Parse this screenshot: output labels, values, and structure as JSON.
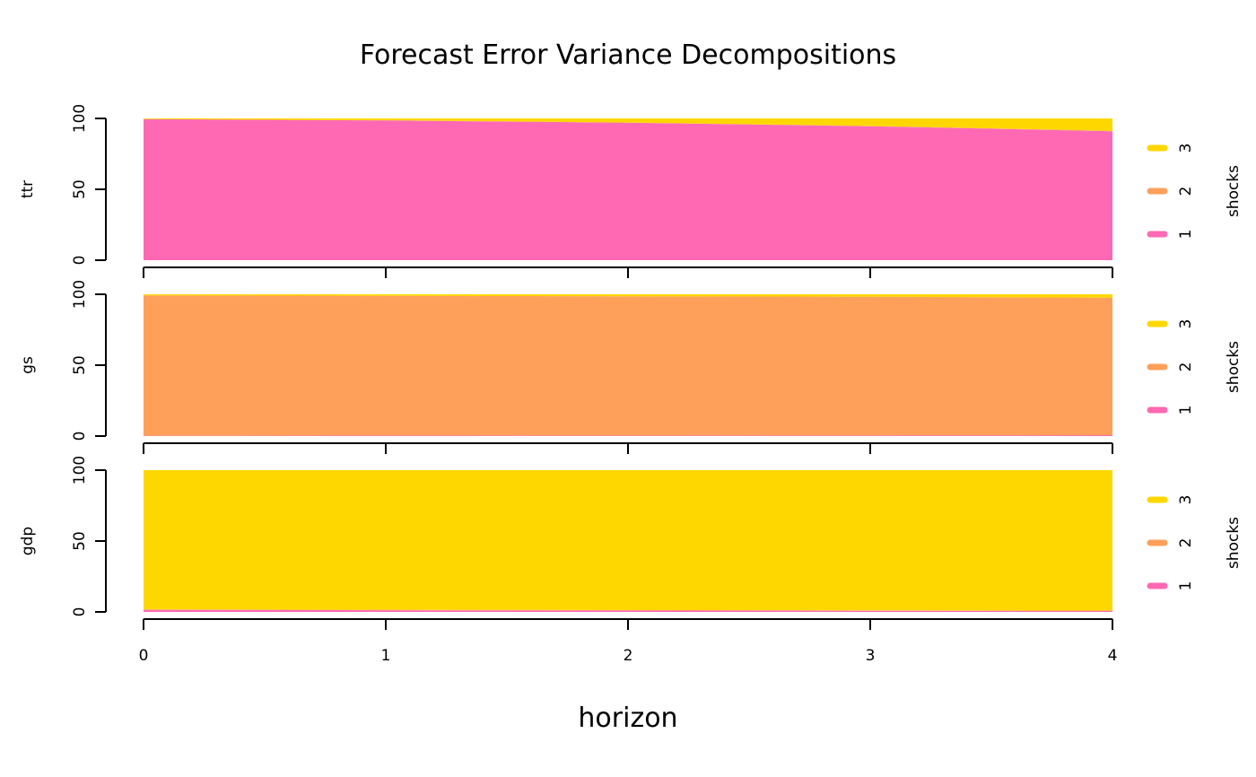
{
  "chart_data": {
    "type": "area",
    "title": "Forecast Error Variance Decompositions",
    "xlabel": "horizon",
    "x": [
      0,
      1,
      2,
      3,
      4
    ],
    "xticks": [
      "0",
      "1",
      "2",
      "3",
      "4"
    ],
    "ylim": [
      0,
      100
    ],
    "yticks": [
      "0",
      "50",
      "100"
    ],
    "legend": {
      "title": "shocks",
      "placement": "right",
      "entries": [
        "1",
        "2",
        "3"
      ],
      "colors": [
        "#FF69B4",
        "#FFA05A",
        "#FFD700"
      ]
    },
    "panels": [
      {
        "ylabel": "ttr",
        "series": [
          {
            "name": "1",
            "values": [
              99.5,
              98.6,
              97.0,
              94.5,
              91.0
            ]
          },
          {
            "name": "2",
            "values": [
              0.0,
              0.1,
              0.1,
              0.2,
              0.2
            ]
          },
          {
            "name": "3",
            "values": [
              0.5,
              1.3,
              2.9,
              5.3,
              8.8
            ]
          }
        ]
      },
      {
        "ylabel": "gs",
        "series": [
          {
            "name": "1",
            "values": [
              0.2,
              0.3,
              0.4,
              0.5,
              0.6
            ]
          },
          {
            "name": "2",
            "values": [
              99.0,
              98.6,
              98.2,
              97.8,
              97.0
            ]
          },
          {
            "name": "3",
            "values": [
              0.8,
              1.1,
              1.4,
              1.7,
              2.4
            ]
          }
        ]
      },
      {
        "ylabel": "gdp",
        "series": [
          {
            "name": "1",
            "values": [
              1.5,
              1.2,
              1.0,
              0.8,
              0.6
            ]
          },
          {
            "name": "2",
            "values": [
              0.2,
              0.3,
              0.3,
              0.3,
              0.4
            ]
          },
          {
            "name": "3",
            "values": [
              98.3,
              98.5,
              98.7,
              98.9,
              99.0
            ]
          }
        ]
      }
    ]
  }
}
